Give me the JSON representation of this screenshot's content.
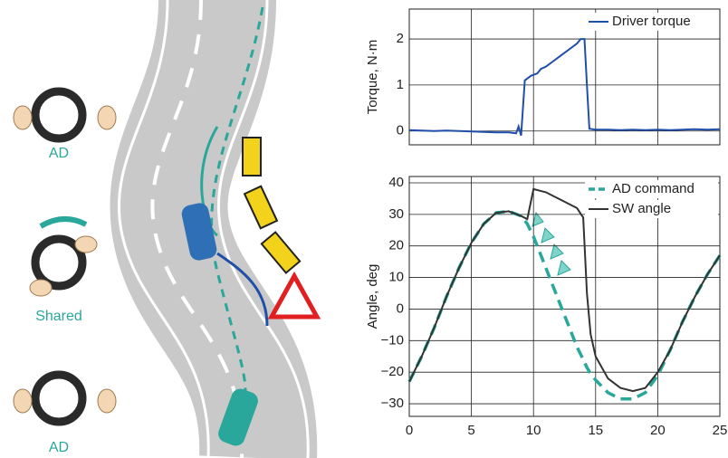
{
  "illustration": {
    "labels": [
      "AD",
      "Shared",
      "AD"
    ]
  },
  "chart_data": [
    {
      "type": "line",
      "ylabel": "Torque, N·m",
      "xlim": [
        0,
        25
      ],
      "ylim": [
        -0.3,
        2.65
      ],
      "yticks": [
        0,
        1,
        2
      ],
      "grid": true,
      "legend": "upper right",
      "series": [
        {
          "name": "Driver torque",
          "color": "#1f4fa8",
          "style": "solid",
          "x": [
            0,
            1,
            2,
            3,
            4,
            5,
            6,
            7,
            8,
            8.6,
            8.8,
            9.0,
            9.3,
            9.8,
            10.3,
            10.6,
            11,
            11.5,
            12,
            12.5,
            13,
            13.5,
            13.8,
            14.1,
            14.3,
            14.5,
            15,
            16,
            17,
            18,
            19,
            20,
            21,
            22,
            23,
            24,
            25
          ],
          "values": [
            0.02,
            0.01,
            0.0,
            0.01,
            0.0,
            -0.01,
            -0.02,
            -0.03,
            -0.03,
            -0.05,
            0.1,
            -0.1,
            1.1,
            1.2,
            1.25,
            1.35,
            1.4,
            1.5,
            1.6,
            1.7,
            1.8,
            1.9,
            2.0,
            2.0,
            1.0,
            0.05,
            0.03,
            0.03,
            0.02,
            0.03,
            0.02,
            0.03,
            0.02,
            0.03,
            0.04,
            0.03,
            0.04
          ]
        }
      ]
    },
    {
      "type": "line",
      "ylabel": "Angle, deg",
      "xlim": [
        0,
        25
      ],
      "ylim": [
        -34,
        42
      ],
      "xticks": [
        0,
        5,
        10,
        15,
        20,
        25
      ],
      "yticks": [
        {
          "value": -30,
          "label": "−30"
        },
        {
          "value": -20,
          "label": "−20"
        },
        {
          "value": -10,
          "label": "−10"
        },
        0,
        10,
        20,
        30,
        40
      ],
      "grid": true,
      "legend": "upper right",
      "series": [
        {
          "name": "AD command",
          "color": "#2aa79b",
          "style": "dashed",
          "x": [
            0,
            1,
            2,
            3,
            4,
            5,
            6,
            7,
            8,
            9,
            9.5,
            10,
            10.5,
            11,
            12,
            13,
            13.5,
            14,
            14.3,
            14.6,
            15,
            16,
            17,
            18,
            19,
            20,
            21,
            22,
            23,
            24,
            25
          ],
          "values": [
            -23,
            -15,
            -6,
            4,
            13,
            21,
            27,
            30.5,
            31,
            29.5,
            27,
            23,
            18,
            13,
            3,
            -7,
            -12,
            -16,
            -18.5,
            -20.5,
            -22.5,
            -26.5,
            -28.5,
            -28.5,
            -26.5,
            -21,
            -13,
            -4,
            4,
            11,
            17
          ]
        },
        {
          "name": "SW angle",
          "color": "#333333",
          "style": "solid",
          "x": [
            0,
            1,
            2,
            3,
            4,
            5,
            6,
            7,
            8,
            9,
            9.5,
            10,
            10.5,
            11,
            12,
            13,
            13.5,
            14,
            14.3,
            14.6,
            15,
            16,
            17,
            18,
            19,
            20,
            21,
            22,
            23,
            24,
            25
          ],
          "values": [
            -23,
            -15,
            -6,
            4,
            13,
            21,
            27,
            30.5,
            31,
            29.5,
            28.5,
            38,
            37.5,
            37,
            35,
            33,
            32,
            29,
            5,
            -8,
            -15,
            -22,
            -25,
            -26,
            -25,
            -20,
            -13,
            -4,
            4,
            11,
            17
          ]
        }
      ]
    }
  ]
}
